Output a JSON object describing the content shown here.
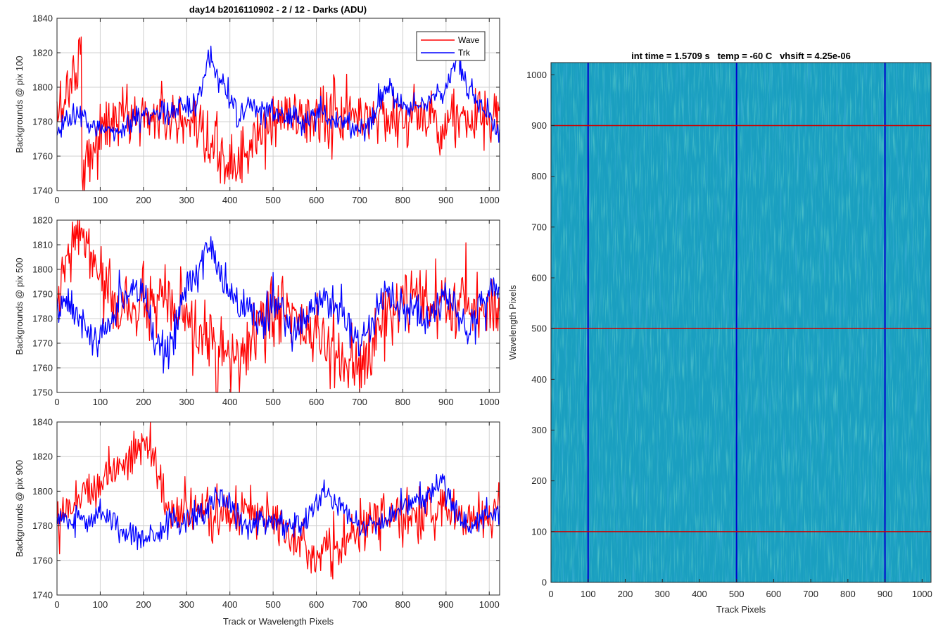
{
  "figure": {
    "suptitle": "day14 b2016110902 - 2 / 12 - Darks (ADU)"
  },
  "colors": {
    "wave": "#ff0000",
    "trk": "#0000ff",
    "grid": "#d0d0d0",
    "image_base": "#1a9fc0",
    "image_variation_light": "#3cc8a4",
    "image_variation_dark": "#1d7fd4"
  },
  "chart_data": [
    {
      "type": "line",
      "title": "",
      "xlabel": "",
      "ylabel": "Backgrounds @ pix 100",
      "xlim": [
        0,
        1024
      ],
      "ylim": [
        1740,
        1840
      ],
      "xticks": [
        0,
        100,
        200,
        300,
        400,
        500,
        600,
        700,
        800,
        900,
        1000
      ],
      "yticks": [
        1740,
        1760,
        1780,
        1800,
        1820,
        1840
      ],
      "grid": true,
      "legend": {
        "placement": "top-right",
        "entries": [
          "Wave",
          "Trk"
        ]
      },
      "series": [
        {
          "name": "Wave",
          "color": "#ff0000",
          "noise_sigma": 9,
          "points": [
            [
              0,
              1783
            ],
            [
              56,
              1820
            ],
            [
              58,
              1754
            ],
            [
              128,
              1783
            ],
            [
              256,
              1783
            ],
            [
              412,
              1754
            ],
            [
              512,
              1783
            ],
            [
              768,
              1783
            ],
            [
              1024,
              1780
            ]
          ]
        },
        {
          "name": "Trk",
          "color": "#0000ff",
          "noise_sigma": 4,
          "points": [
            [
              0,
              1770
            ],
            [
              20,
              1782
            ],
            [
              60,
              1782
            ],
            [
              100,
              1776
            ],
            [
              140,
              1774
            ],
            [
              200,
              1782
            ],
            [
              260,
              1788
            ],
            [
              320,
              1790
            ],
            [
              340,
              1805
            ],
            [
              350,
              1815
            ],
            [
              370,
              1805
            ],
            [
              390,
              1800
            ],
            [
              420,
              1785
            ],
            [
              450,
              1788
            ],
            [
              500,
              1785
            ],
            [
              560,
              1780
            ],
            [
              600,
              1785
            ],
            [
              640,
              1783
            ],
            [
              680,
              1778
            ],
            [
              710,
              1775
            ],
            [
              740,
              1788
            ],
            [
              760,
              1800
            ],
            [
              800,
              1788
            ],
            [
              850,
              1790
            ],
            [
              900,
              1800
            ],
            [
              925,
              1815
            ],
            [
              950,
              1800
            ],
            [
              1000,
              1783
            ],
            [
              1024,
              1770
            ]
          ]
        }
      ]
    },
    {
      "type": "line",
      "title": "",
      "xlabel": "",
      "ylabel": "Backgrounds @ pix 500",
      "xlim": [
        0,
        1024
      ],
      "ylim": [
        1750,
        1820
      ],
      "xticks": [
        0,
        100,
        200,
        300,
        400,
        500,
        600,
        700,
        800,
        900,
        1000
      ],
      "yticks": [
        1750,
        1760,
        1770,
        1780,
        1790,
        1800,
        1810,
        1820
      ],
      "grid": true,
      "series": [
        {
          "name": "Wave",
          "color": "#ff0000",
          "noise_sigma": 7,
          "points": [
            [
              0,
              1785
            ],
            [
              48,
              1818
            ],
            [
              128,
              1785
            ],
            [
              256,
              1785
            ],
            [
              410,
              1761
            ],
            [
              512,
              1785
            ],
            [
              708,
              1757
            ],
            [
              768,
              1785
            ],
            [
              1024,
              1785
            ]
          ]
        },
        {
          "name": "Trk",
          "color": "#0000ff",
          "noise_sigma": 4,
          "points": [
            [
              0,
              1785
            ],
            [
              30,
              1786
            ],
            [
              70,
              1775
            ],
            [
              100,
              1772
            ],
            [
              150,
              1788
            ],
            [
              200,
              1790
            ],
            [
              230,
              1770
            ],
            [
              260,
              1768
            ],
            [
              290,
              1790
            ],
            [
              340,
              1805
            ],
            [
              360,
              1810
            ],
            [
              380,
              1795
            ],
            [
              420,
              1785
            ],
            [
              470,
              1780
            ],
            [
              500,
              1785
            ],
            [
              560,
              1775
            ],
            [
              610,
              1790
            ],
            [
              650,
              1782
            ],
            [
              700,
              1772
            ],
            [
              760,
              1790
            ],
            [
              800,
              1783
            ],
            [
              850,
              1780
            ],
            [
              900,
              1790
            ],
            [
              950,
              1775
            ],
            [
              1000,
              1790
            ],
            [
              1024,
              1795
            ]
          ]
        }
      ]
    },
    {
      "type": "line",
      "title": "",
      "xlabel": "Track or Wavelength Pixels",
      "ylabel": "Backgrounds @ pix 900",
      "xlim": [
        0,
        1024
      ],
      "ylim": [
        1740,
        1840
      ],
      "xticks": [
        0,
        100,
        200,
        300,
        400,
        500,
        600,
        700,
        800,
        900,
        1000
      ],
      "yticks": [
        1740,
        1760,
        1780,
        1800,
        1820,
        1840
      ],
      "grid": true,
      "series": [
        {
          "name": "Wave",
          "color": "#ff0000",
          "noise_sigma": 7,
          "points": [
            [
              0,
              1787
            ],
            [
              216,
              1829
            ],
            [
              256,
              1787
            ],
            [
              512,
              1787
            ],
            [
              600,
              1760
            ],
            [
              768,
              1787
            ],
            [
              1024,
              1787
            ]
          ]
        },
        {
          "name": "Trk",
          "color": "#0000ff",
          "noise_sigma": 4,
          "points": [
            [
              0,
              1785
            ],
            [
              60,
              1782
            ],
            [
              100,
              1788
            ],
            [
              150,
              1778
            ],
            [
              200,
              1772
            ],
            [
              260,
              1782
            ],
            [
              300,
              1785
            ],
            [
              340,
              1788
            ],
            [
              380,
              1798
            ],
            [
              420,
              1784
            ],
            [
              460,
              1780
            ],
            [
              500,
              1782
            ],
            [
              560,
              1778
            ],
            [
              620,
              1800
            ],
            [
              660,
              1790
            ],
            [
              700,
              1780
            ],
            [
              750,
              1782
            ],
            [
              800,
              1790
            ],
            [
              850,
              1795
            ],
            [
              890,
              1805
            ],
            [
              920,
              1790
            ],
            [
              960,
              1780
            ],
            [
              1024,
              1790
            ]
          ]
        }
      ]
    },
    {
      "type": "heatmap",
      "title": "int time = 1.5709 s   temp = -60 C   vhsift = 4.25e-06",
      "xlabel": "Track Pixels",
      "ylabel": "Wavelength Pixels",
      "xlim": [
        0,
        1024
      ],
      "ylim": [
        0,
        1024
      ],
      "xticks": [
        0,
        100,
        200,
        300,
        400,
        500,
        600,
        700,
        800,
        900,
        1000
      ],
      "yticks": [
        0,
        100,
        200,
        300,
        400,
        500,
        600,
        700,
        800,
        900,
        1000
      ],
      "grid": false,
      "colormap": "parula",
      "vertical_markers": {
        "color": "#0000cc",
        "x": [
          100,
          500,
          900
        ]
      },
      "horizontal_markers": {
        "color": "#cc0000",
        "y": [
          100,
          500,
          900
        ]
      }
    }
  ]
}
